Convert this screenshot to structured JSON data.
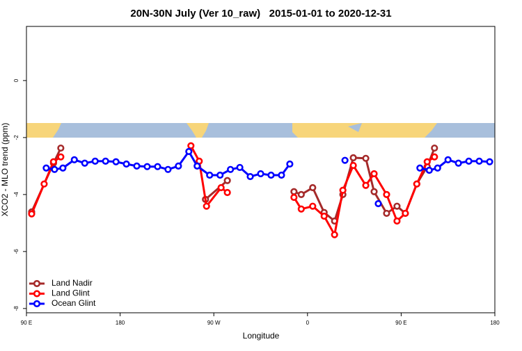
{
  "chart_data": {
    "type": "line",
    "title": "20N-30N July (Ver 10_raw)   2015-01-01 to 2020-12-31",
    "x_label": "Longitude",
    "y_label": "XCO2 - MLO trend (ppm)",
    "xlim": [
      90,
      540
    ],
    "xticks": [
      {
        "value": 90,
        "label": "90 E"
      },
      {
        "value": 180,
        "label": "180"
      },
      {
        "value": 270,
        "label": "90 W"
      },
      {
        "value": 360,
        "label": "0"
      },
      {
        "value": 450,
        "label": "90 E"
      },
      {
        "value": 540,
        "label": "180"
      }
    ],
    "ylim": [
      -8.15,
      1.9
    ],
    "yticks": [
      0,
      -2,
      -4,
      -6,
      -8
    ],
    "legend": "bottomleft",
    "series": [
      {
        "name": "Land Nadir",
        "color": "#a52a2a",
        "x": [
          95,
          116,
          123,
          200,
          262,
          283,
          320,
          347,
          354,
          365,
          376,
          386,
          394,
          404,
          416,
          424,
          436,
          446,
          454,
          465,
          475,
          482
        ],
        "values": [
          -4.61,
          -2.9,
          -2.37,
          null,
          -4.17,
          -3.51,
          null,
          -3.9,
          -4.0,
          -3.76,
          -4.63,
          -4.93,
          -4.0,
          -2.71,
          -2.73,
          -3.9,
          -4.66,
          -4.41,
          -4.66,
          -3.63,
          -3.02,
          -2.37
        ]
      },
      {
        "name": "Land Glint",
        "color": "#ff0000",
        "x": [
          95,
          107,
          116,
          123,
          200,
          248,
          256,
          263,
          277,
          283,
          320,
          347,
          354,
          365,
          376,
          386,
          394,
          404,
          416,
          424,
          436,
          446,
          454,
          465,
          475,
          482
        ],
        "values": [
          -4.68,
          -3.63,
          -2.85,
          -2.68,
          null,
          -2.29,
          -2.83,
          -4.41,
          -3.76,
          -3.93,
          null,
          -4.1,
          -4.51,
          -4.41,
          -4.76,
          -5.41,
          -3.85,
          -2.98,
          -3.68,
          -3.27,
          -4.0,
          -4.93,
          -4.66,
          -3.63,
          -2.85,
          -2.68
        ]
      },
      {
        "name": "Ocean Glint",
        "color": "#0000ff",
        "x": [
          109,
          117,
          125,
          136,
          146,
          156,
          166,
          176,
          186,
          196,
          206,
          216,
          226,
          236,
          246,
          254,
          266,
          276,
          286,
          295,
          305,
          315,
          325,
          335,
          343,
          370,
          396,
          410,
          428,
          450,
          468,
          477,
          485,
          495,
          505,
          515,
          525,
          535
        ],
        "values": [
          -3.07,
          -3.12,
          -3.07,
          -2.78,
          -2.9,
          -2.83,
          -2.83,
          -2.85,
          -2.93,
          -3.0,
          -3.02,
          -3.02,
          -3.12,
          -3.0,
          -2.49,
          -3.0,
          -3.32,
          -3.32,
          -3.12,
          -3.05,
          -3.37,
          -3.27,
          -3.32,
          -3.32,
          -2.93,
          null,
          -2.8,
          null,
          -4.32,
          null,
          -3.07,
          -3.15,
          -3.07,
          -2.78,
          -2.9,
          -2.83,
          -2.83,
          -2.85
        ]
      }
    ]
  }
}
